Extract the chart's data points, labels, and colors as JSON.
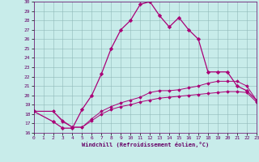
{
  "xlabel": "Windchill (Refroidissement éolien,°C)",
  "background_color": "#c8ecea",
  "grid_color": "#a0c8c8",
  "line_color": "#aa0077",
  "xlim": [
    0,
    23
  ],
  "ylim": [
    16,
    30
  ],
  "xticks": [
    0,
    1,
    2,
    3,
    4,
    5,
    6,
    7,
    8,
    9,
    10,
    11,
    12,
    13,
    14,
    15,
    16,
    17,
    18,
    19,
    20,
    21,
    22,
    23
  ],
  "yticks": [
    16,
    17,
    18,
    19,
    20,
    21,
    22,
    23,
    24,
    25,
    26,
    27,
    28,
    29,
    30
  ],
  "series1_x": [
    0,
    2,
    3,
    4,
    5,
    6,
    7,
    8,
    9,
    10,
    11,
    12,
    13,
    14,
    15,
    16,
    17,
    18,
    19,
    20,
    21,
    22,
    23
  ],
  "series1_y": [
    18.3,
    17.2,
    16.5,
    16.5,
    18.5,
    20.0,
    22.3,
    25.0,
    27.0,
    28.0,
    29.7,
    30.0,
    28.5,
    27.3,
    28.3,
    27.0,
    26.0,
    22.5,
    22.5,
    22.5,
    21.0,
    20.5,
    19.5
  ],
  "series2_x": [
    0,
    2,
    3,
    4,
    5,
    6,
    7,
    8,
    9,
    10,
    11,
    12,
    13,
    14,
    15,
    16,
    17,
    18,
    19,
    20,
    21,
    22,
    23
  ],
  "series2_y": [
    18.3,
    18.3,
    17.2,
    16.6,
    16.6,
    17.5,
    18.3,
    18.8,
    19.2,
    19.5,
    19.8,
    20.3,
    20.5,
    20.5,
    20.6,
    20.8,
    21.0,
    21.3,
    21.5,
    21.5,
    21.5,
    21.0,
    19.5
  ],
  "series3_x": [
    0,
    2,
    3,
    4,
    5,
    6,
    7,
    8,
    9,
    10,
    11,
    12,
    13,
    14,
    15,
    16,
    17,
    18,
    19,
    20,
    21,
    22,
    23
  ],
  "series3_y": [
    18.3,
    18.3,
    17.3,
    16.6,
    16.6,
    17.3,
    18.0,
    18.5,
    18.8,
    19.0,
    19.3,
    19.5,
    19.7,
    19.8,
    19.9,
    20.0,
    20.1,
    20.2,
    20.3,
    20.4,
    20.4,
    20.3,
    19.3
  ]
}
